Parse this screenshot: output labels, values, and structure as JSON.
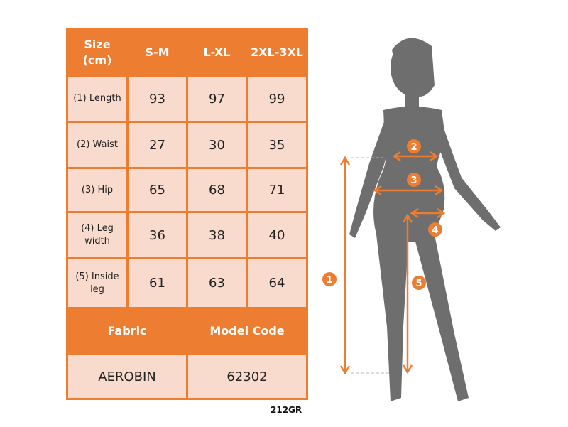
{
  "table": {
    "headers": [
      "Size (cm)",
      "S-M",
      "L-XL",
      "2XL-3XL"
    ],
    "rows": [
      {
        "label": "(1) Length",
        "values": [
          "93",
          "97",
          "99"
        ]
      },
      {
        "label": "(2) Waist",
        "values": [
          "27",
          "30",
          "35"
        ]
      },
      {
        "label": "(3) Hip",
        "values": [
          "65",
          "68",
          "71"
        ]
      },
      {
        "label": "(4) Leg width",
        "values": [
          "36",
          "38",
          "40"
        ]
      },
      {
        "label": "(5) Inside leg",
        "values": [
          "61",
          "63",
          "64"
        ]
      }
    ],
    "footer_headers": [
      "Fabric",
      "Model Code"
    ],
    "footer_values": [
      "AEROBIN",
      "62302"
    ]
  },
  "code": "212GR",
  "figure": {
    "markers": [
      "1",
      "2",
      "3",
      "4",
      "5"
    ],
    "accent": "#ed7d31",
    "silhouette": "#6e6e6e"
  }
}
